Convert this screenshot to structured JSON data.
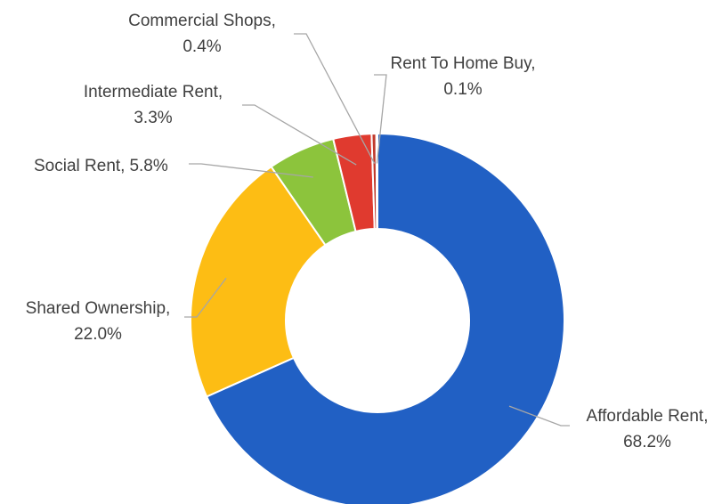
{
  "chart_data": {
    "type": "donut",
    "categories": [
      "Affordable Rent,",
      "Shared Ownership,",
      "Social Rent,",
      "Intermediate Rent,",
      "Commercial Shops,",
      "Rent To Home Buy,"
    ],
    "values": [
      68.2,
      22.0,
      5.8,
      3.3,
      0.4,
      0.1
    ],
    "value_labels": [
      "68.2%",
      "22.0%",
      "5.8%",
      "3.3%",
      "0.4%",
      "0.1%"
    ],
    "colors": [
      "#2160c4",
      "#fdbd14",
      "#8cc43c",
      "#e03a2f",
      "#c0392b",
      "#7f6fb0"
    ]
  }
}
